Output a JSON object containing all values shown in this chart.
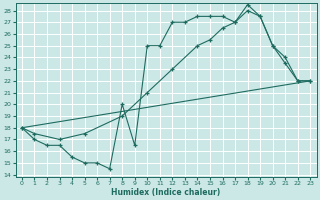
{
  "bg_color": "#cce8e6",
  "grid_color": "#b8d8d6",
  "line_color": "#1e6b60",
  "xlabel": "Humidex (Indice chaleur)",
  "xlim_min": -0.5,
  "xlim_max": 23.5,
  "ylim_min": 13.8,
  "ylim_max": 28.6,
  "xticks": [
    0,
    1,
    2,
    3,
    4,
    5,
    6,
    7,
    8,
    9,
    10,
    11,
    12,
    13,
    14,
    15,
    16,
    17,
    18,
    19,
    20,
    21,
    22,
    23
  ],
  "yticks": [
    14,
    15,
    16,
    17,
    18,
    19,
    20,
    21,
    22,
    23,
    24,
    25,
    26,
    27,
    28
  ],
  "line1_x": [
    0,
    1,
    2,
    3,
    4,
    5,
    6,
    7,
    8,
    9,
    10,
    11,
    12,
    13,
    14,
    15,
    16,
    17,
    18,
    19,
    20,
    21,
    22,
    23
  ],
  "line1_y": [
    18,
    17,
    16.5,
    16.5,
    15.5,
    15,
    15,
    14.5,
    20,
    16.5,
    25,
    25,
    27,
    27,
    27.5,
    27.5,
    27.5,
    27,
    28.5,
    27.5,
    25,
    23.5,
    22,
    22
  ],
  "line2_x": [
    0,
    1,
    3,
    5,
    8,
    10,
    12,
    14,
    15,
    16,
    17,
    18,
    19,
    20,
    21,
    22,
    23
  ],
  "line2_y": [
    18,
    17.5,
    17,
    17.5,
    19,
    21,
    23,
    25,
    25.5,
    26.5,
    27,
    28,
    27.5,
    25,
    24,
    22,
    22
  ],
  "line3_x": [
    0,
    23
  ],
  "line3_y": [
    18,
    22
  ]
}
